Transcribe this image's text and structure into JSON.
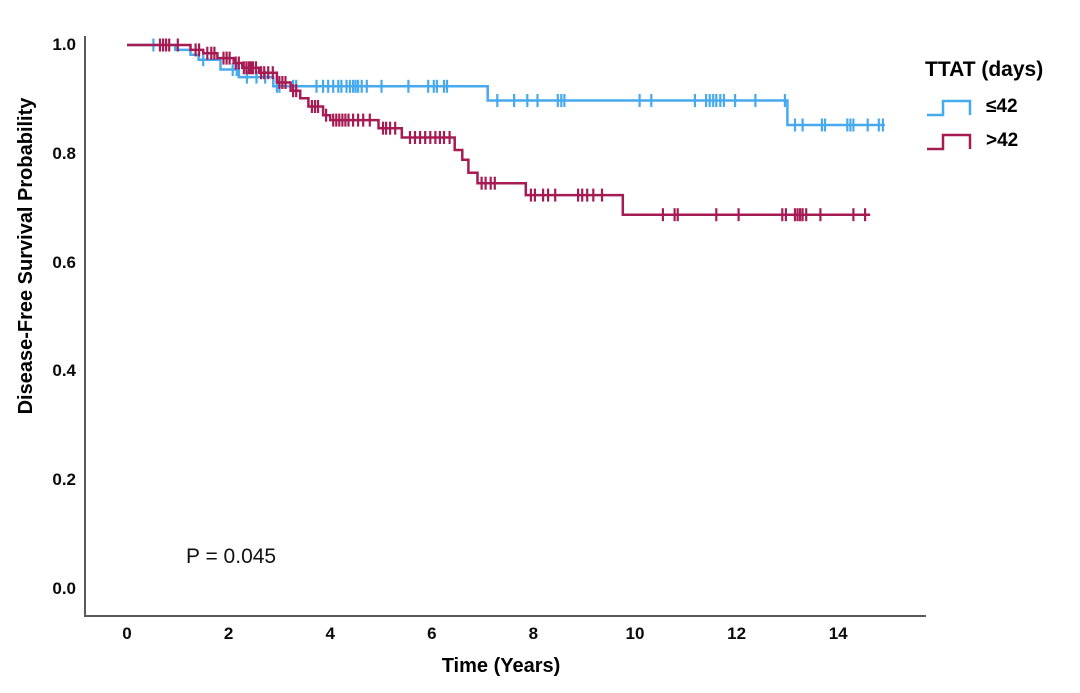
{
  "colors": {
    "background": "#FFFFFF",
    "axis": "#5A5A5A",
    "text": "#000000",
    "curve_le42": "#47A9EE",
    "curve_gt42": "#A61B53"
  },
  "chart_data": {
    "type": "line",
    "subtype": "kaplan_meier_step",
    "title": "",
    "xlabel": "Time (Years)",
    "ylabel": "Disease-Free Survival Probability",
    "annotation": "P = 0.045",
    "grid": false,
    "xticks": [
      0,
      2,
      4,
      6,
      8,
      10,
      12,
      14
    ],
    "yticks": [
      0.0,
      0.2,
      0.4,
      0.6,
      0.8,
      1.0
    ],
    "xlim": [
      -0.85,
      15.75
    ],
    "ylim": [
      -0.05,
      1.02
    ],
    "legend": {
      "title": "TTAT (days)",
      "position": "right",
      "entries": [
        "≤42",
        ">42"
      ]
    },
    "series": [
      {
        "id": "le42",
        "name": "≤42",
        "color": "#47A9EE",
        "steps": [
          [
            0,
            1.0
          ],
          [
            0.95,
            0.991
          ],
          [
            1.25,
            0.982
          ],
          [
            1.41,
            0.973
          ],
          [
            1.84,
            0.955
          ],
          [
            2.2,
            0.941
          ],
          [
            2.88,
            0.924
          ],
          [
            7.1,
            0.898
          ],
          [
            13.0,
            0.853
          ]
        ],
        "end": 14.92,
        "censor_times": [
          0.52,
          1.5,
          2.08,
          2.16,
          2.36,
          2.55,
          2.72,
          2.95,
          3.0,
          3.27,
          3.33,
          3.73,
          3.86,
          3.96,
          4.06,
          4.16,
          4.22,
          4.32,
          4.39,
          4.45,
          4.5,
          4.55,
          4.62,
          4.72,
          5.01,
          5.54,
          5.93,
          6.04,
          6.1,
          6.24,
          6.3,
          7.29,
          7.62,
          7.88,
          8.08,
          8.48,
          8.55,
          8.61,
          10.09,
          10.32,
          11.18,
          11.4,
          11.47,
          11.54,
          11.6,
          11.68,
          11.75,
          11.97,
          12.37,
          12.95,
          13.15,
          13.3,
          13.68,
          13.74,
          14.18,
          14.24,
          14.3,
          14.58,
          14.8,
          14.88
        ]
      },
      {
        "id": "gt42",
        "name": ">42",
        "color": "#A61B53",
        "steps": [
          [
            0,
            1.0
          ],
          [
            1.25,
            0.991
          ],
          [
            1.5,
            0.985
          ],
          [
            1.78,
            0.976
          ],
          [
            2.1,
            0.967
          ],
          [
            2.27,
            0.958
          ],
          [
            2.6,
            0.949
          ],
          [
            2.95,
            0.931
          ],
          [
            3.22,
            0.916
          ],
          [
            3.41,
            0.902
          ],
          [
            3.57,
            0.887
          ],
          [
            3.86,
            0.871
          ],
          [
            4.0,
            0.862
          ],
          [
            4.95,
            0.847
          ],
          [
            5.41,
            0.83
          ],
          [
            6.45,
            0.807
          ],
          [
            6.6,
            0.789
          ],
          [
            6.72,
            0.765
          ],
          [
            6.9,
            0.746
          ],
          [
            7.85,
            0.724
          ],
          [
            9.76,
            0.688
          ]
        ],
        "end": 14.63,
        "censor_times": [
          0.65,
          0.71,
          0.77,
          0.83,
          1.0,
          1.35,
          1.42,
          1.58,
          1.66,
          1.72,
          1.9,
          1.96,
          2.02,
          2.14,
          2.2,
          2.3,
          2.35,
          2.4,
          2.44,
          2.48,
          2.54,
          2.64,
          2.7,
          2.78,
          2.87,
          3.0,
          3.06,
          3.12,
          3.27,
          3.33,
          3.64,
          3.7,
          3.76,
          3.92,
          4.06,
          4.12,
          4.18,
          4.24,
          4.3,
          4.36,
          4.45,
          4.55,
          4.65,
          4.78,
          5.04,
          5.1,
          5.18,
          5.28,
          5.57,
          5.67,
          5.77,
          5.87,
          5.97,
          6.07,
          6.16,
          6.24,
          6.35,
          6.98,
          7.06,
          7.16,
          7.24,
          7.95,
          8.03,
          8.19,
          8.29,
          8.43,
          8.88,
          8.96,
          9.06,
          9.18,
          9.35,
          10.55,
          10.78,
          10.84,
          11.6,
          12.04,
          12.9,
          12.97,
          13.15,
          13.2,
          13.25,
          13.3,
          13.37,
          13.65,
          14.3,
          14.53
        ]
      }
    ]
  }
}
